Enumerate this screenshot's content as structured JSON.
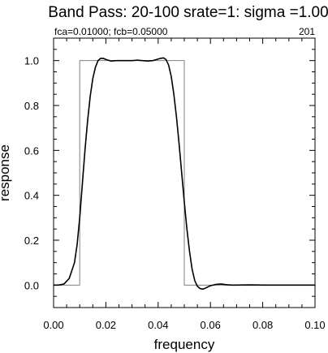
{
  "chart_data": {
    "type": "line",
    "title": "Band Pass: 20-100 srate=1:  sigma =1.00",
    "subtitle_left": "fca=0.01000; fcb=0.05000",
    "subtitle_right": "201",
    "xlabel": "frequency",
    "ylabel": "response",
    "xlim": [
      0.0,
      0.1
    ],
    "ylim": [
      -0.1,
      1.1
    ],
    "x_ticks": [
      0.0,
      0.02,
      0.04,
      0.06,
      0.08,
      0.1
    ],
    "x_tick_labels": [
      "0.00",
      "0.02",
      "0.04",
      "0.06",
      "0.08",
      "0.10"
    ],
    "y_ticks": [
      0.0,
      0.2,
      0.4,
      0.6,
      0.8,
      1.0
    ],
    "y_tick_labels": [
      "0.0",
      "0.2",
      "0.4",
      "0.6",
      "0.8",
      "1.0"
    ],
    "grid": false,
    "series": [
      {
        "color": "#808080",
        "x": [
          0.0,
          0.01,
          0.01,
          0.05,
          0.05,
          0.1
        ],
        "y": [
          0.0,
          0.0,
          1.0,
          1.0,
          0.0,
          0.0
        ]
      },
      {
        "color": "#000000",
        "x": [
          0.0,
          0.002,
          0.004,
          0.006,
          0.008,
          0.009,
          0.01,
          0.011,
          0.012,
          0.013,
          0.014,
          0.015,
          0.016,
          0.017,
          0.018,
          0.019,
          0.02,
          0.022,
          0.024,
          0.026,
          0.028,
          0.03,
          0.032,
          0.034,
          0.036,
          0.038,
          0.04,
          0.041,
          0.042,
          0.043,
          0.044,
          0.045,
          0.046,
          0.047,
          0.048,
          0.049,
          0.05,
          0.051,
          0.052,
          0.053,
          0.054,
          0.055,
          0.056,
          0.057,
          0.058,
          0.059,
          0.06,
          0.062,
          0.064,
          0.066,
          0.068,
          0.07,
          0.075,
          0.08,
          0.085,
          0.09,
          0.095,
          0.1
        ],
        "y": [
          0.0,
          0.0,
          0.005,
          0.03,
          0.1,
          0.18,
          0.3,
          0.45,
          0.6,
          0.73,
          0.84,
          0.92,
          0.97,
          1.0,
          1.01,
          1.01,
          1.005,
          0.998,
          1.0,
          1.0,
          1.0,
          1.0,
          1.002,
          1.0,
          0.998,
          1.0,
          1.007,
          1.01,
          1.012,
          1.005,
          0.98,
          0.93,
          0.85,
          0.75,
          0.63,
          0.5,
          0.37,
          0.25,
          0.15,
          0.07,
          0.02,
          -0.005,
          -0.015,
          -0.018,
          -0.014,
          -0.008,
          -0.003,
          0.003,
          0.005,
          0.002,
          0.0,
          0.0,
          0.001,
          0.0,
          0.0,
          0.0,
          0.0,
          0.0
        ]
      }
    ]
  }
}
